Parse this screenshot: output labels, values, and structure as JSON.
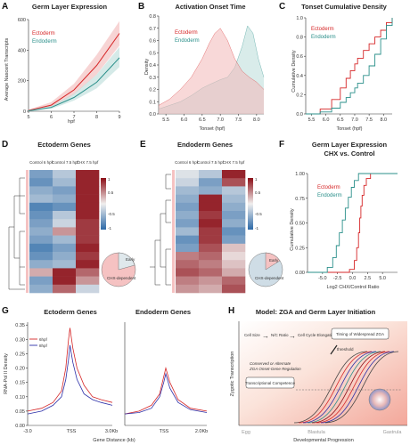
{
  "colors": {
    "ectoderm": "#d62728",
    "endoderm": "#2a8f8a",
    "ectoderm_fill": "#f2b8b8",
    "endoderm_fill": "#b9dcd8",
    "heat_high": "#8b0d16",
    "heat_mid": "#f1efee",
    "heat_low": "#2c6aa8",
    "profile_early": "#d62728",
    "profile_late": "#2c2fa8"
  },
  "panel_labels": [
    "A",
    "B",
    "C",
    "D",
    "E",
    "F",
    "G",
    "H"
  ],
  "chart_data": [
    {
      "panel": "A",
      "type": "line",
      "title": "Germ Layer Expression",
      "xlabel": "hpf",
      "ylabel": "Average Nascent Transcripts",
      "x": [
        5,
        6,
        7,
        8,
        9
      ],
      "xlim": [
        5,
        9
      ],
      "ylim": [
        0,
        600
      ],
      "yticks": [
        0,
        200,
        400,
        600
      ],
      "legend": [
        "Ectoderm",
        "Endoderm"
      ],
      "series": [
        {
          "name": "Ectoderm",
          "values": [
            5,
            40,
            140,
            300,
            510
          ],
          "band": [
            [
              0,
              10
            ],
            [
              25,
              60
            ],
            [
              110,
              180
            ],
            [
              240,
              370
            ],
            [
              430,
              590
            ]
          ]
        },
        {
          "name": "Endoderm",
          "values": [
            3,
            25,
            90,
            190,
            350
          ],
          "band": [
            [
              0,
              6
            ],
            [
              15,
              35
            ],
            [
              70,
              115
            ],
            [
              150,
              240
            ],
            [
              290,
              420
            ]
          ]
        }
      ]
    },
    {
      "panel": "B",
      "type": "area",
      "title": "Activation Onset Time",
      "xlabel": "Tonset (hpf)",
      "ylabel": "Density",
      "xlim": [
        5.3,
        8.2
      ],
      "ylim": [
        0,
        0.8
      ],
      "xticks": [
        5.5,
        6.0,
        6.5,
        7.0,
        7.5,
        8.0
      ],
      "yticks": [
        0.0,
        0.1,
        0.2,
        0.3,
        0.4,
        0.5,
        0.6,
        0.7,
        0.8
      ],
      "legend": [
        "Ectoderm",
        "Endoderm"
      ],
      "series": [
        {
          "name": "Ectoderm",
          "x": [
            5.3,
            5.6,
            5.9,
            6.2,
            6.5,
            6.7,
            6.85,
            7.0,
            7.2,
            7.4,
            7.6,
            7.8,
            8.0,
            8.2
          ],
          "values": [
            0.07,
            0.12,
            0.2,
            0.3,
            0.45,
            0.58,
            0.66,
            0.7,
            0.6,
            0.45,
            0.35,
            0.3,
            0.26,
            0.2
          ]
        },
        {
          "name": "Endoderm",
          "x": [
            5.3,
            5.6,
            5.9,
            6.2,
            6.5,
            6.7,
            6.85,
            7.0,
            7.2,
            7.4,
            7.6,
            7.75,
            7.9,
            8.05,
            8.2
          ],
          "values": [
            0.04,
            0.07,
            0.1,
            0.15,
            0.21,
            0.24,
            0.26,
            0.28,
            0.3,
            0.38,
            0.55,
            0.72,
            0.66,
            0.45,
            0.3
          ]
        }
      ]
    },
    {
      "panel": "C",
      "type": "line",
      "title": "Tonset Cumulative Density",
      "xlabel": "Tonset (hpf)",
      "ylabel": "Cumulative Density",
      "xlim": [
        5.3,
        8.3
      ],
      "ylim": [
        0,
        1
      ],
      "xticks": [
        5.5,
        6.0,
        6.5,
        7.0,
        7.5,
        8.0
      ],
      "yticks": [
        0.0,
        0.2,
        0.4,
        0.6,
        0.8,
        1.0
      ],
      "legend": [
        "Ectoderm",
        "Endoderm"
      ],
      "series": [
        {
          "name": "Ectoderm",
          "x": [
            5.3,
            5.8,
            6.2,
            6.5,
            6.7,
            6.85,
            7.0,
            7.1,
            7.3,
            7.5,
            7.7,
            7.9,
            8.1,
            8.3
          ],
          "values": [
            0.0,
            0.05,
            0.15,
            0.27,
            0.37,
            0.45,
            0.52,
            0.58,
            0.66,
            0.73,
            0.8,
            0.87,
            0.95,
            1.0
          ]
        },
        {
          "name": "Endoderm",
          "x": [
            5.3,
            5.8,
            6.2,
            6.5,
            6.7,
            6.85,
            7.0,
            7.1,
            7.3,
            7.5,
            7.7,
            7.9,
            8.1,
            8.3
          ],
          "values": [
            0.0,
            0.02,
            0.06,
            0.12,
            0.17,
            0.22,
            0.27,
            0.32,
            0.4,
            0.5,
            0.62,
            0.78,
            0.92,
            1.0
          ]
        }
      ]
    },
    {
      "panel": "D",
      "type": "heatmap",
      "title": "Ectoderm Genes",
      "columns": [
        "Control 6 hpf",
        "Control 7.5 hpf",
        "CHX 7.5 hpf"
      ],
      "colorbar_ticks": [
        "1",
        "0.5",
        "-0.5",
        "-1"
      ],
      "pie_labels": [
        "Early",
        "CHX-dependent"
      ]
    },
    {
      "panel": "E",
      "type": "heatmap",
      "title": "Endoderm Genes",
      "columns": [
        "Control 6 hpf",
        "Control 7.5 hpf",
        "CHX 7.5 hpf"
      ],
      "colorbar_ticks": [
        "1",
        "0.5",
        "-0.5",
        "-1"
      ],
      "pie_labels": [
        "Early",
        "CHX-dependent"
      ]
    },
    {
      "panel": "F",
      "type": "line",
      "title": "Germ Layer Expression",
      "subtitle": "CHX vs. Control",
      "xlabel": "Log2 CHX/Control Ratio",
      "ylabel": "Cumulative Density",
      "xlim": [
        -7.5,
        7.5
      ],
      "ylim": [
        0,
        1
      ],
      "xticks": [
        -5.0,
        -2.5,
        0.0,
        2.5,
        5.0
      ],
      "yticks": [
        0.0,
        0.25,
        0.5,
        0.75,
        1.0
      ],
      "legend": [
        "Ectoderm",
        "Endoderm"
      ],
      "series": [
        {
          "name": "Ectoderm",
          "x": [
            -7.5,
            -2.0,
            -0.5,
            0.3,
            0.7,
            1.0,
            1.2,
            1.4,
            1.6,
            1.9,
            2.3,
            3.0,
            7.5
          ],
          "values": [
            0.0,
            0.0,
            0.03,
            0.12,
            0.25,
            0.4,
            0.55,
            0.67,
            0.78,
            0.88,
            0.95,
            1.0,
            1.0
          ]
        },
        {
          "name": "Endoderm",
          "x": [
            -7.5,
            -5.5,
            -4.2,
            -3.3,
            -2.7,
            -2.2,
            -1.7,
            -1.2,
            -0.7,
            -0.2,
            0.3,
            1.0,
            7.5
          ],
          "values": [
            0.0,
            0.0,
            0.05,
            0.15,
            0.27,
            0.4,
            0.53,
            0.65,
            0.76,
            0.86,
            0.93,
            1.0,
            1.0
          ]
        }
      ]
    },
    {
      "panel": "G",
      "type": "line",
      "title_left": "Ectoderm Genes",
      "title_right": "Endoderm Genes",
      "xlabel": "Gene Distance (kb)",
      "ylabel": "RNA-Pol II Density",
      "ylim": [
        0,
        0.36
      ],
      "yticks": [
        0.0,
        0.05,
        0.1,
        0.15,
        0.2,
        0.25,
        0.3,
        0.35
      ],
      "xticks_left": [
        "-3.0",
        "TSS",
        "3.0Kb"
      ],
      "xticks_right": [
        "TSS",
        "2.0Kb"
      ],
      "legend": [
        "6hpf",
        "8hpf"
      ],
      "series": [
        {
          "name": "6hpf",
          "subplot": "left",
          "x": [
            -3,
            -2,
            -1.2,
            -0.6,
            -0.3,
            -0.1,
            0,
            0.2,
            0.5,
            1,
            1.6,
            2.2,
            3
          ],
          "values": [
            0.05,
            0.06,
            0.08,
            0.12,
            0.2,
            0.3,
            0.34,
            0.27,
            0.2,
            0.14,
            0.1,
            0.09,
            0.08
          ]
        },
        {
          "name": "8hpf",
          "subplot": "left",
          "x": [
            -3,
            -2,
            -1.2,
            -0.6,
            -0.3,
            -0.1,
            0,
            0.2,
            0.5,
            1,
            1.6,
            2.2,
            3
          ],
          "values": [
            0.04,
            0.05,
            0.07,
            0.1,
            0.16,
            0.23,
            0.28,
            0.22,
            0.16,
            0.11,
            0.09,
            0.08,
            0.07
          ]
        },
        {
          "name": "6hpf",
          "subplot": "right",
          "x": [
            -2,
            -1.3,
            -0.7,
            -0.3,
            -0.1,
            0,
            0.2,
            0.6,
            1.2,
            2
          ],
          "values": [
            0.04,
            0.05,
            0.07,
            0.11,
            0.17,
            0.2,
            0.15,
            0.09,
            0.06,
            0.05
          ]
        },
        {
          "name": "8hpf",
          "subplot": "right",
          "x": [
            -2,
            -1.3,
            -0.7,
            -0.3,
            -0.1,
            0,
            0.2,
            0.6,
            1.2,
            2
          ],
          "values": [
            0.04,
            0.045,
            0.06,
            0.1,
            0.15,
            0.18,
            0.13,
            0.08,
            0.055,
            0.045
          ]
        }
      ]
    }
  ],
  "panel_h": {
    "title": "Model: ZGA and Germ Layer Initiation",
    "ylabel": "Zygotic Transcription",
    "xlabel": "Developmental Progression",
    "stages": [
      "Egg",
      "Blastula",
      "Gastrula"
    ],
    "boxes": {
      "cell_size": "Cell Size",
      "nc_ratio": "N/C Ratio",
      "cell_cycle": "Cell Cycle Elongation",
      "timing": "Timing of Widespread ZGA",
      "competence": "Transcriptional Competence"
    },
    "notes": {
      "threshold": "threshold",
      "mid_line1": "Conserved or Alternate",
      "mid_line2": "ZGA Onset-Gene Regulation"
    }
  }
}
